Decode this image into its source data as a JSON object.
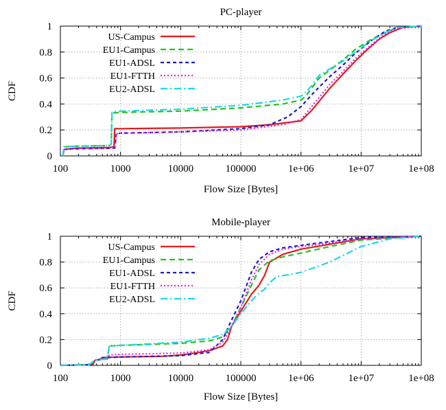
{
  "chart_data": [
    {
      "type": "line",
      "title": "PC-player",
      "xlabel": "Flow Size [Bytes]",
      "ylabel": "CDF",
      "xscale": "log",
      "xlim": [
        100,
        100000000
      ],
      "ylim": [
        0,
        1
      ],
      "xticks": [
        "100",
        "1000",
        "10000",
        "100000",
        "1e+06",
        "1e+07",
        "1e+08"
      ],
      "yticks": [
        "0",
        "0.2",
        "0.4",
        "0.6",
        "0.8",
        "1"
      ],
      "grid": true,
      "legend_position": "top-left",
      "series": [
        {
          "name": "US-Campus",
          "color": "#e31a1c",
          "dash": "solid",
          "points": [
            [
              110,
              0
            ],
            [
              115,
              0.05
            ],
            [
              180,
              0.06
            ],
            [
              650,
              0.065
            ],
            [
              780,
              0.07
            ],
            [
              800,
              0.21
            ],
            [
              1000,
              0.21
            ],
            [
              10000,
              0.215
            ],
            [
              100000,
              0.225
            ],
            [
              300000,
              0.24
            ],
            [
              1000000,
              0.27
            ],
            [
              1500000,
              0.35
            ],
            [
              2000000,
              0.42
            ],
            [
              3000000,
              0.52
            ],
            [
              5000000,
              0.63
            ],
            [
              8000000,
              0.73
            ],
            [
              12000000,
              0.81
            ],
            [
              20000000,
              0.9
            ],
            [
              30000000,
              0.95
            ],
            [
              50000000,
              0.99
            ],
            [
              100000000,
              1
            ]
          ]
        },
        {
          "name": "EU1-Campus",
          "color": "#22c422",
          "dash": "8 5",
          "points": [
            [
              110,
              0
            ],
            [
              115,
              0.07
            ],
            [
              180,
              0.075
            ],
            [
              650,
              0.08
            ],
            [
              700,
              0.09
            ],
            [
              720,
              0.33
            ],
            [
              1000,
              0.335
            ],
            [
              10000,
              0.345
            ],
            [
              100000,
              0.37
            ],
            [
              500000,
              0.4
            ],
            [
              1000000,
              0.43
            ],
            [
              1200000,
              0.46
            ],
            [
              1500000,
              0.52
            ],
            [
              2000000,
              0.6
            ],
            [
              3000000,
              0.66
            ],
            [
              5000000,
              0.74
            ],
            [
              8000000,
              0.82
            ],
            [
              15000000,
              0.9
            ],
            [
              25000000,
              0.95
            ],
            [
              40000000,
              0.99
            ],
            [
              100000000,
              1
            ]
          ]
        },
        {
          "name": "EU1-ADSL",
          "color": "#1a1acc",
          "dash": "5 4",
          "points": [
            [
              110,
              0
            ],
            [
              115,
              0.05
            ],
            [
              180,
              0.055
            ],
            [
              800,
              0.06
            ],
            [
              850,
              0.17
            ],
            [
              1000,
              0.175
            ],
            [
              10000,
              0.185
            ],
            [
              100000,
              0.21
            ],
            [
              300000,
              0.24
            ],
            [
              600000,
              0.3
            ],
            [
              1000000,
              0.38
            ],
            [
              1500000,
              0.47
            ],
            [
              2000000,
              0.53
            ],
            [
              3000000,
              0.61
            ],
            [
              5000000,
              0.7
            ],
            [
              8000000,
              0.79
            ],
            [
              15000000,
              0.89
            ],
            [
              25000000,
              0.96
            ],
            [
              40000000,
              0.99
            ],
            [
              100000000,
              1
            ]
          ]
        },
        {
          "name": "EU1-FTTH",
          "color": "#e020e0",
          "dash": "2 3",
          "points": [
            [
              110,
              0
            ],
            [
              115,
              0.05
            ],
            [
              180,
              0.055
            ],
            [
              800,
              0.06
            ],
            [
              850,
              0.17
            ],
            [
              1000,
              0.175
            ],
            [
              10000,
              0.185
            ],
            [
              100000,
              0.2
            ],
            [
              500000,
              0.24
            ],
            [
              1000000,
              0.28
            ],
            [
              1500000,
              0.38
            ],
            [
              2000000,
              0.45
            ],
            [
              3000000,
              0.55
            ],
            [
              5000000,
              0.65
            ],
            [
              8000000,
              0.75
            ],
            [
              15000000,
              0.86
            ],
            [
              25000000,
              0.94
            ],
            [
              40000000,
              0.98
            ],
            [
              100000000,
              1
            ]
          ]
        },
        {
          "name": "EU2-ADSL",
          "color": "#1ed6e6",
          "dash": "10 4 2 4",
          "points": [
            [
              110,
              0
            ],
            [
              115,
              0.07
            ],
            [
              180,
              0.075
            ],
            [
              650,
              0.08
            ],
            [
              700,
              0.09
            ],
            [
              720,
              0.34
            ],
            [
              1000,
              0.345
            ],
            [
              10000,
              0.36
            ],
            [
              100000,
              0.39
            ],
            [
              500000,
              0.43
            ],
            [
              1000000,
              0.46
            ],
            [
              1200000,
              0.49
            ],
            [
              1500000,
              0.54
            ],
            [
              2000000,
              0.62
            ],
            [
              3000000,
              0.67
            ],
            [
              5000000,
              0.73
            ],
            [
              8000000,
              0.8
            ],
            [
              15000000,
              0.89
            ],
            [
              25000000,
              0.95
            ],
            [
              40000000,
              0.99
            ],
            [
              100000000,
              1
            ]
          ]
        }
      ]
    },
    {
      "type": "line",
      "title": "Mobile-player",
      "xlabel": "Flow Size [Bytes]",
      "ylabel": "CDF",
      "xscale": "log",
      "xlim": [
        100,
        100000000
      ],
      "ylim": [
        0,
        1
      ],
      "xticks": [
        "100",
        "1000",
        "10000",
        "100000",
        "1e+06",
        "1e+07",
        "1e+08"
      ],
      "yticks": [
        "0",
        "0.2",
        "0.4",
        "0.6",
        "0.8",
        "1"
      ],
      "grid": true,
      "legend_position": "top-left",
      "series": [
        {
          "name": "US-Campus",
          "color": "#e31a1c",
          "dash": "solid",
          "points": [
            [
              100,
              0
            ],
            [
              300,
              0.005
            ],
            [
              350,
              0.01
            ],
            [
              380,
              0.04
            ],
            [
              450,
              0.045
            ],
            [
              500,
              0.06
            ],
            [
              1000,
              0.065
            ],
            [
              5000,
              0.07
            ],
            [
              10000,
              0.08
            ],
            [
              20000,
              0.1
            ],
            [
              30000,
              0.115
            ],
            [
              50000,
              0.15
            ],
            [
              60000,
              0.2
            ],
            [
              70000,
              0.3
            ],
            [
              100000,
              0.42
            ],
            [
              150000,
              0.55
            ],
            [
              200000,
              0.62
            ],
            [
              250000,
              0.7
            ],
            [
              300000,
              0.8
            ],
            [
              500000,
              0.86
            ],
            [
              1000000,
              0.9
            ],
            [
              10000000,
              0.98
            ],
            [
              100000000,
              1
            ]
          ]
        },
        {
          "name": "EU1-Campus",
          "color": "#22c422",
          "dash": "8 5",
          "points": [
            [
              100,
              0
            ],
            [
              300,
              0.005
            ],
            [
              380,
              0.04
            ],
            [
              600,
              0.05
            ],
            [
              650,
              0.15
            ],
            [
              1000,
              0.155
            ],
            [
              10000,
              0.17
            ],
            [
              30000,
              0.19
            ],
            [
              50000,
              0.22
            ],
            [
              70000,
              0.3
            ],
            [
              100000,
              0.45
            ],
            [
              150000,
              0.62
            ],
            [
              200000,
              0.74
            ],
            [
              300000,
              0.81
            ],
            [
              500000,
              0.84
            ],
            [
              1000000,
              0.87
            ],
            [
              3000000,
              0.92
            ],
            [
              10000000,
              0.97
            ],
            [
              100000000,
              1
            ]
          ]
        },
        {
          "name": "EU1-ADSL",
          "color": "#1a1acc",
          "dash": "5 4",
          "points": [
            [
              100,
              0
            ],
            [
              300,
              0.005
            ],
            [
              380,
              0.04
            ],
            [
              450,
              0.045
            ],
            [
              500,
              0.06
            ],
            [
              1000,
              0.065
            ],
            [
              10000,
              0.075
            ],
            [
              30000,
              0.1
            ],
            [
              50000,
              0.2
            ],
            [
              70000,
              0.35
            ],
            [
              100000,
              0.5
            ],
            [
              150000,
              0.72
            ],
            [
              200000,
              0.82
            ],
            [
              300000,
              0.88
            ],
            [
              500000,
              0.91
            ],
            [
              1000000,
              0.93
            ],
            [
              10000000,
              0.99
            ],
            [
              100000000,
              1
            ]
          ]
        },
        {
          "name": "EU1-FTTH",
          "color": "#e020e0",
          "dash": "2 3",
          "points": [
            [
              100,
              0
            ],
            [
              300,
              0.005
            ],
            [
              380,
              0.04
            ],
            [
              600,
              0.05
            ],
            [
              650,
              0.08
            ],
            [
              1000,
              0.085
            ],
            [
              10000,
              0.095
            ],
            [
              30000,
              0.12
            ],
            [
              50000,
              0.18
            ],
            [
              70000,
              0.3
            ],
            [
              100000,
              0.45
            ],
            [
              150000,
              0.66
            ],
            [
              200000,
              0.78
            ],
            [
              300000,
              0.86
            ],
            [
              500000,
              0.9
            ],
            [
              1000000,
              0.92
            ],
            [
              10000000,
              0.98
            ],
            [
              100000000,
              1
            ]
          ]
        },
        {
          "name": "EU2-ADSL",
          "color": "#1ed6e6",
          "dash": "10 4 2 4",
          "points": [
            [
              100,
              0
            ],
            [
              300,
              0.005
            ],
            [
              380,
              0.04
            ],
            [
              600,
              0.05
            ],
            [
              650,
              0.15
            ],
            [
              1000,
              0.155
            ],
            [
              10000,
              0.18
            ],
            [
              30000,
              0.21
            ],
            [
              50000,
              0.24
            ],
            [
              70000,
              0.3
            ],
            [
              100000,
              0.4
            ],
            [
              150000,
              0.5
            ],
            [
              200000,
              0.56
            ],
            [
              250000,
              0.59
            ],
            [
              300000,
              0.64
            ],
            [
              400000,
              0.69
            ],
            [
              600000,
              0.7
            ],
            [
              1000000,
              0.72
            ],
            [
              3000000,
              0.8
            ],
            [
              10000000,
              0.92
            ],
            [
              30000000,
              0.98
            ],
            [
              100000000,
              1
            ]
          ]
        }
      ]
    }
  ]
}
